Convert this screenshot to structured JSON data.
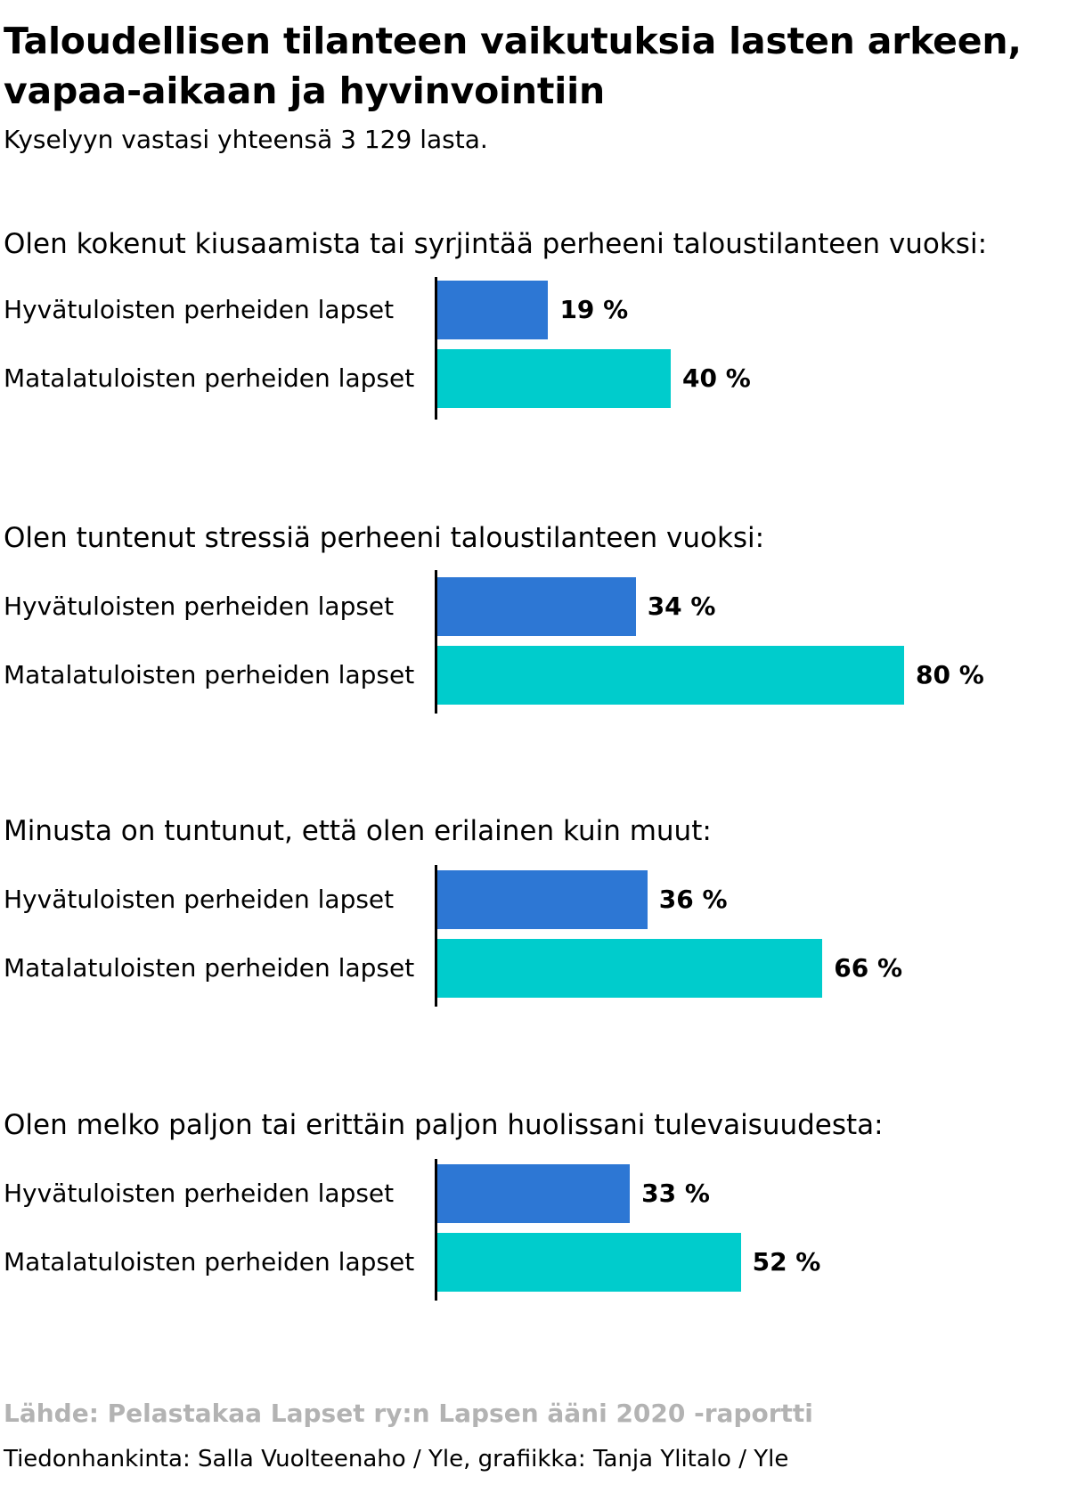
{
  "header": {
    "title": "Taloudellisen tilanteen vaikutuksia lasten arkeen, vapaa-aikaan ja hyvinvointiin",
    "subtitle": "Kyselyyn vastasi yhteensä 3 129 lasta."
  },
  "colors": {
    "hyvatuloiset": "#2d77d4",
    "matalatuloiset": "#00cccc"
  },
  "chart_data": {
    "type": "bar",
    "orientation": "horizontal",
    "title": "Taloudellisen tilanteen vaikutuksia lasten arkeen, vapaa-aikaan ja hyvinvointiin",
    "subtitle": "Kyselyyn vastasi yhteensä 3 129 lasta.",
    "unit": "%",
    "xlim": [
      0,
      100
    ],
    "grid": false,
    "legend": "none",
    "groups": [
      {
        "question": "Olen kokenut kiusaamista tai syrjintää perheeni taloustilanteen vuoksi:",
        "bars": [
          {
            "label": "Hyvätuloisten perheiden lapset",
            "value": 19,
            "value_text": "19 %",
            "color": "#2d77d4"
          },
          {
            "label": "Matalatuloisten perheiden lapset",
            "value": 40,
            "value_text": "40 %",
            "color": "#00cccc"
          }
        ]
      },
      {
        "question": "Olen tuntenut stressiä perheeni taloustilanteen vuoksi:",
        "bars": [
          {
            "label": "Hyvätuloisten perheiden lapset",
            "value": 34,
            "value_text": "34 %",
            "color": "#2d77d4"
          },
          {
            "label": "Matalatuloisten perheiden lapset",
            "value": 80,
            "value_text": "80 %",
            "color": "#00cccc"
          }
        ]
      },
      {
        "question": "Minusta on tuntunut, että olen erilainen kuin muut:",
        "bars": [
          {
            "label": "Hyvätuloisten perheiden lapset",
            "value": 36,
            "value_text": "36 %",
            "color": "#2d77d4"
          },
          {
            "label": "Matalatuloisten perheiden lapset",
            "value": 66,
            "value_text": "66 %",
            "color": "#00cccc"
          }
        ]
      },
      {
        "question": "Olen melko paljon tai erittäin paljon huolissani tulevaisuudesta:",
        "bars": [
          {
            "label": "Hyvätuloisten perheiden lapset",
            "value": 33,
            "value_text": "33 %",
            "color": "#2d77d4"
          },
          {
            "label": "Matalatuloisten perheiden lapset",
            "value": 52,
            "value_text": "52 %",
            "color": "#00cccc"
          }
        ]
      }
    ]
  },
  "footer": {
    "source": "Lähde: Pelastakaa Lapset ry:n Lapsen ääni 2020 -raportti",
    "credits": "Tiedonhankinta: Salla Vuolteenaho / Yle, grafiikka: Tanja Ylitalo / Yle"
  }
}
